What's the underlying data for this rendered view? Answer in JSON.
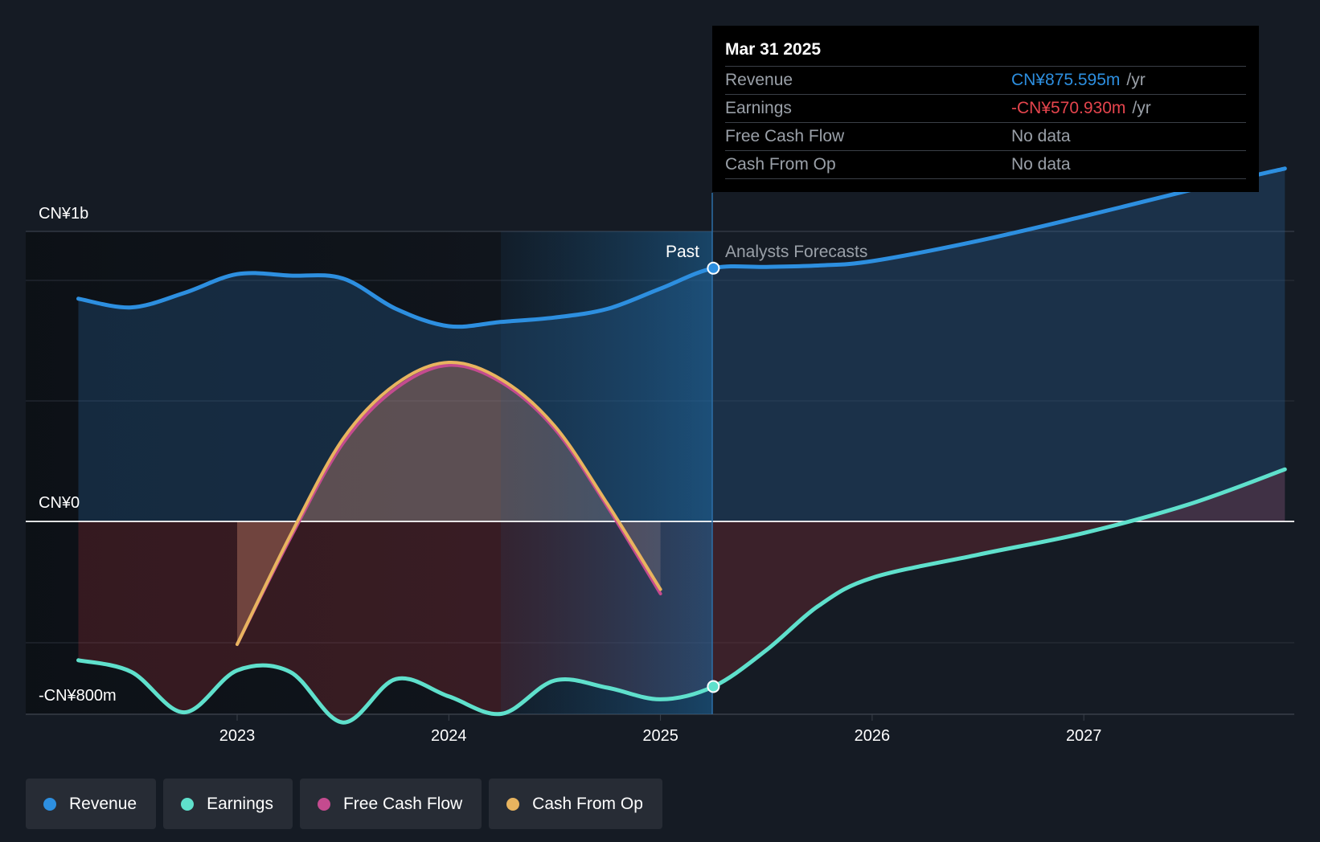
{
  "chart_data": {
    "type": "line",
    "x_ticks": [
      "2023",
      "2024",
      "2025",
      "2026",
      "2027"
    ],
    "y_ticks": [
      "CN¥1b",
      "CN¥0",
      "-CN¥800m"
    ],
    "region_labels": {
      "past": "Past",
      "forecast": "Analysts Forecasts"
    },
    "forecast_start": "2025.25",
    "series": [
      {
        "name": "Revenue",
        "color": "#2d8fe0",
        "unit": "CN¥m",
        "points": [
          [
            2022.25,
            770
          ],
          [
            2022.5,
            740
          ],
          [
            2022.75,
            790
          ],
          [
            2023.0,
            855
          ],
          [
            2023.25,
            850
          ],
          [
            2023.5,
            840
          ],
          [
            2023.75,
            735
          ],
          [
            2024.0,
            675
          ],
          [
            2024.25,
            690
          ],
          [
            2024.5,
            705
          ],
          [
            2024.75,
            735
          ],
          [
            2025.0,
            805
          ],
          [
            2025.25,
            875.595
          ],
          [
            2025.5,
            880
          ],
          [
            2025.75,
            885
          ],
          [
            2026.0,
            900
          ],
          [
            2026.5,
            970
          ],
          [
            2027.0,
            1055
          ],
          [
            2027.5,
            1145
          ],
          [
            2027.95,
            1220
          ]
        ]
      },
      {
        "name": "Earnings",
        "color": "#5fe0cc",
        "unit": "CN¥m",
        "points": [
          [
            2022.25,
            -480
          ],
          [
            2022.5,
            -520
          ],
          [
            2022.75,
            -660
          ],
          [
            2023.0,
            -515
          ],
          [
            2023.25,
            -520
          ],
          [
            2023.5,
            -695
          ],
          [
            2023.75,
            -545
          ],
          [
            2024.0,
            -605
          ],
          [
            2024.25,
            -665
          ],
          [
            2024.5,
            -550
          ],
          [
            2024.75,
            -575
          ],
          [
            2025.0,
            -615
          ],
          [
            2025.25,
            -570.93
          ],
          [
            2025.5,
            -445
          ],
          [
            2025.75,
            -290
          ],
          [
            2026.0,
            -195
          ],
          [
            2026.5,
            -115
          ],
          [
            2027.0,
            -40
          ],
          [
            2027.5,
            60
          ],
          [
            2027.95,
            180
          ]
        ]
      },
      {
        "name": "Free Cash Flow",
        "color": "#c44b8f",
        "unit": "CN¥m",
        "points": [
          [
            2023.0,
            -425
          ],
          [
            2023.25,
            -60
          ],
          [
            2023.5,
            270
          ],
          [
            2023.75,
            460
          ],
          [
            2024.0,
            540
          ],
          [
            2024.25,
            480
          ],
          [
            2024.5,
            320
          ],
          [
            2024.75,
            50
          ],
          [
            2025.0,
            -250
          ]
        ]
      },
      {
        "name": "Cash From Op",
        "color": "#e8b45f",
        "unit": "CN¥m",
        "points": [
          [
            2023.0,
            -425
          ],
          [
            2023.25,
            -50
          ],
          [
            2023.5,
            285
          ],
          [
            2023.75,
            475
          ],
          [
            2024.0,
            550
          ],
          [
            2024.25,
            490
          ],
          [
            2024.5,
            330
          ],
          [
            2024.75,
            60
          ],
          [
            2025.0,
            -235
          ]
        ]
      }
    ]
  },
  "tooltip": {
    "date": "Mar 31 2025",
    "rows": [
      {
        "name": "Revenue",
        "value": "CN¥875.595m",
        "unit": "/yr",
        "color": "#2d8fe0"
      },
      {
        "name": "Earnings",
        "value": "-CN¥570.930m",
        "unit": "/yr",
        "color": "#e5454d"
      },
      {
        "name": "Free Cash Flow",
        "value": "No data",
        "unit": "",
        "color": "#9aa0a8"
      },
      {
        "name": "Cash From Op",
        "value": "No data",
        "unit": "",
        "color": "#9aa0a8"
      }
    ]
  },
  "legend": [
    {
      "label": "Revenue",
      "color": "#2d8fe0"
    },
    {
      "label": "Earnings",
      "color": "#5fe0cc"
    },
    {
      "label": "Free Cash Flow",
      "color": "#c44b8f"
    },
    {
      "label": "Cash From Op",
      "color": "#e8b45f"
    }
  ]
}
